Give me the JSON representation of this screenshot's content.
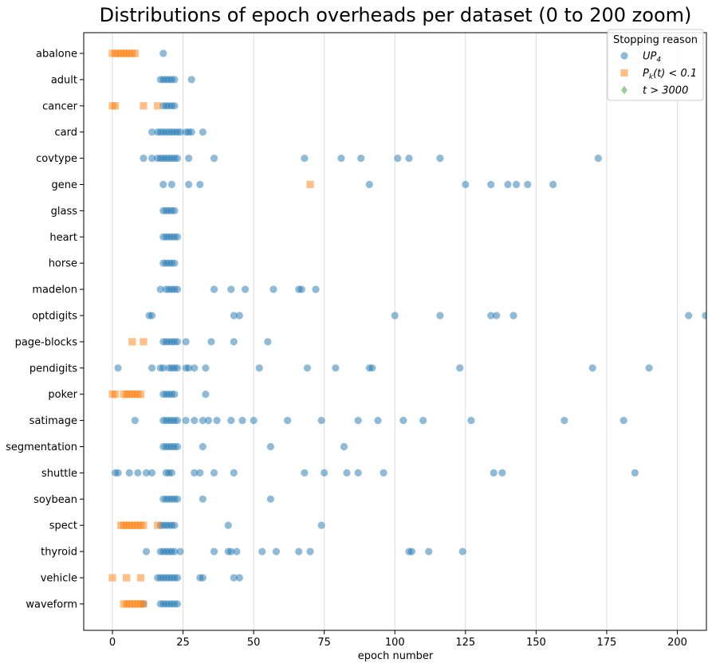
{
  "chart_data": {
    "type": "scatter",
    "title": "Distributions of epoch overheads per dataset (0 to 200 zoom)",
    "xlabel": "epoch number",
    "ylabel": "",
    "xlim": [
      -10,
      210
    ],
    "xticks": [
      0,
      25,
      50,
      75,
      100,
      125,
      150,
      175,
      200
    ],
    "grid": "vertical",
    "legend_position": "top-right",
    "legend_title": "Stopping reason",
    "categories": [
      "abalone",
      "adult",
      "cancer",
      "card",
      "covtype",
      "gene",
      "glass",
      "heart",
      "horse",
      "madelon",
      "optdigits",
      "page-blocks",
      "pendigits",
      "poker",
      "satimage",
      "segmentation",
      "shuttle",
      "soybean",
      "spect",
      "thyroid",
      "vehicle",
      "waveform"
    ],
    "series": [
      {
        "name": "UP4",
        "color": "#1f77b4",
        "marker": "circle",
        "points": [
          {
            "category": "abalone",
            "x": [
              18
            ]
          },
          {
            "category": "adult",
            "x": [
              17,
              18,
              19,
              20,
              21,
              22,
              28
            ]
          },
          {
            "category": "cancer",
            "x": [
              18,
              19,
              20,
              21,
              22
            ]
          },
          {
            "category": "card",
            "x": [
              14,
              16,
              17,
              18,
              19,
              20,
              21,
              22,
              23,
              24,
              26,
              27,
              28,
              32
            ]
          },
          {
            "category": "covtype",
            "x": [
              11,
              14,
              16,
              17,
              18,
              19,
              20,
              21,
              22,
              23,
              27,
              36,
              68,
              81,
              88,
              101,
              105,
              116,
              172
            ]
          },
          {
            "category": "gene",
            "x": [
              18,
              21,
              27,
              31,
              91,
              125,
              134,
              140,
              143,
              147,
              156
            ]
          },
          {
            "category": "glass",
            "x": [
              18,
              19,
              20,
              21,
              22
            ]
          },
          {
            "category": "heart",
            "x": [
              18,
              19,
              20,
              21,
              22,
              23
            ]
          },
          {
            "category": "horse",
            "x": [
              18,
              19,
              20,
              21,
              22
            ]
          },
          {
            "category": "madelon",
            "x": [
              17,
              19,
              20,
              21,
              22,
              23,
              36,
              42,
              47,
              57,
              66,
              67,
              72
            ]
          },
          {
            "category": "optdigits",
            "x": [
              13,
              14,
              43,
              45,
              100,
              116,
              134,
              136,
              142,
              204,
              210
            ]
          },
          {
            "category": "page-blocks",
            "x": [
              18,
              19,
              20,
              21,
              22,
              23,
              26,
              35,
              43,
              55
            ]
          },
          {
            "category": "pendigits",
            "x": [
              2,
              14,
              17,
              18,
              20,
              21,
              22,
              23,
              26,
              27,
              29,
              33,
              52,
              69,
              79,
              91,
              92,
              123,
              170,
              190
            ]
          },
          {
            "category": "poker",
            "x": [
              18,
              19,
              20,
              21,
              22,
              33
            ]
          },
          {
            "category": "satimage",
            "x": [
              8,
              18,
              19,
              20,
              21,
              22,
              23,
              26,
              29,
              32,
              34,
              37,
              42,
              46,
              50,
              62,
              74,
              87,
              94,
              103,
              110,
              127,
              160,
              181
            ]
          },
          {
            "category": "segmentation",
            "x": [
              18,
              19,
              20,
              21,
              22,
              23,
              32,
              56,
              82
            ]
          },
          {
            "category": "shuttle",
            "x": [
              1,
              2,
              6,
              9,
              12,
              14,
              19,
              20,
              21,
              29,
              31,
              36,
              43,
              68,
              75,
              83,
              87,
              96,
              135,
              138,
              185
            ]
          },
          {
            "category": "soybean",
            "x": [
              18,
              19,
              20,
              21,
              22,
              23,
              32,
              56
            ]
          },
          {
            "category": "spect",
            "x": [
              17,
              18,
              19,
              20,
              21,
              22,
              41,
              74
            ]
          },
          {
            "category": "thyroid",
            "x": [
              12,
              17,
              18,
              19,
              20,
              21,
              22,
              24,
              36,
              41,
              42,
              44,
              53,
              58,
              66,
              70,
              105,
              106,
              112,
              124
            ]
          },
          {
            "category": "vehicle",
            "x": [
              16,
              17,
              18,
              19,
              20,
              21,
              22,
              23,
              31,
              32,
              43,
              45
            ]
          },
          {
            "category": "waveform",
            "x": [
              11,
              17,
              18,
              19,
              20,
              21,
              22,
              23
            ]
          }
        ]
      },
      {
        "name": "Pk(t) < 0.1",
        "color": "#ff7f0e",
        "marker": "square",
        "points": [
          {
            "category": "abalone",
            "x": [
              0,
              1,
              2,
              3,
              4,
              5,
              6,
              7,
              8
            ]
          },
          {
            "category": "cancer",
            "x": [
              0,
              1,
              11,
              16
            ]
          },
          {
            "category": "gene",
            "x": [
              70
            ]
          },
          {
            "category": "page-blocks",
            "x": [
              7,
              11
            ]
          },
          {
            "category": "poker",
            "x": [
              0,
              1,
              4,
              5,
              6,
              7,
              8,
              9,
              10
            ]
          },
          {
            "category": "spect",
            "x": [
              3,
              4,
              5,
              6,
              7,
              8,
              9,
              10,
              11,
              16
            ]
          },
          {
            "category": "vehicle",
            "x": [
              0,
              5,
              10
            ]
          },
          {
            "category": "waveform",
            "x": [
              4,
              5,
              6,
              7,
              8,
              9,
              10,
              11
            ]
          }
        ]
      },
      {
        "name": "t > 3000",
        "color": "#2ca02c",
        "marker": "diamond",
        "points": []
      }
    ]
  }
}
